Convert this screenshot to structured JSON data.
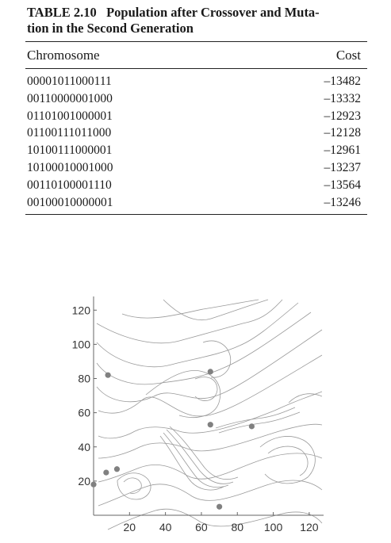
{
  "table": {
    "number": "TABLE 2.10",
    "title": "Population after Crossover and Muta-tion in the Second Generation",
    "title_line1": "Population after Crossover and Muta-",
    "title_line2": "tion in the Second Generation",
    "columns": [
      "Chromosome",
      "Cost"
    ],
    "rows": [
      {
        "chromosome": "00001011000111",
        "cost": "–13482"
      },
      {
        "chromosome": "00110000001000",
        "cost": "–13332"
      },
      {
        "chromosome": "01101001000001",
        "cost": "–12923"
      },
      {
        "chromosome": "01100111011000",
        "cost": "–12128"
      },
      {
        "chromosome": "10100111000001",
        "cost": "–12961"
      },
      {
        "chromosome": "10100010001000",
        "cost": "–13237"
      },
      {
        "chromosome": "00110100001110",
        "cost": "–13564"
      },
      {
        "chromosome": "00100010000001",
        "cost": "–13246"
      }
    ]
  },
  "chart_data": {
    "type": "scatter",
    "title": "",
    "xlabel": "",
    "ylabel": "",
    "xlim": [
      0,
      128
    ],
    "ylim": [
      0,
      128
    ],
    "x_ticks": [
      20,
      40,
      60,
      80,
      100,
      120
    ],
    "y_ticks": [
      20,
      40,
      60,
      80,
      100,
      120
    ],
    "background": "contour lines",
    "point_color": "#808080",
    "series": [
      {
        "x": [
          0,
          7,
          13,
          8,
          65,
          65,
          88,
          70
        ],
        "y": [
          18,
          25,
          27,
          82,
          84,
          53,
          52,
          5
        ]
      }
    ]
  }
}
